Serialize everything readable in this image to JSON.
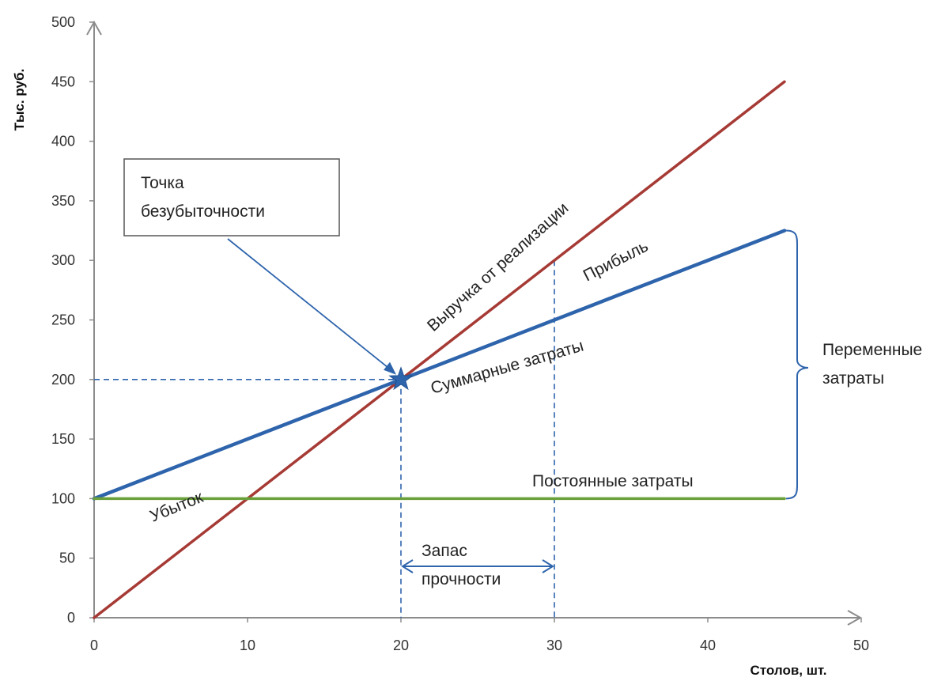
{
  "chart_data": {
    "type": "line",
    "xlabel": "Столов, шт.",
    "ylabel": "Тыс. руб.",
    "xlim": [
      0,
      50
    ],
    "ylim": [
      0,
      500
    ],
    "x_ticks": [
      0,
      10,
      20,
      30,
      40,
      50
    ],
    "y_ticks": [
      0,
      50,
      100,
      150,
      200,
      250,
      300,
      350,
      400,
      450,
      500
    ],
    "grid": false,
    "series": [
      {
        "name": "Выручка от реализации",
        "x": [
          0,
          45
        ],
        "y": [
          0,
          450
        ],
        "color": "#a63a35"
      },
      {
        "name": "Суммарные затраты",
        "x": [
          0,
          45
        ],
        "y": [
          100,
          325
        ],
        "color": "#2e64ac"
      },
      {
        "name": "Постоянные затраты",
        "x": [
          0,
          45
        ],
        "y": [
          100,
          100
        ],
        "color": "#6aa03a"
      }
    ],
    "break_even": {
      "x": 20,
      "y": 200,
      "label_line1": "Точка",
      "label_line2": "безубыточности"
    },
    "safety_margin": {
      "x_from": 20,
      "x_to": 30,
      "label_line1": "Запас",
      "label_line2": "прочности"
    },
    "variable_costs_label": {
      "line1": "Переменные",
      "line2": "затраты"
    },
    "profit_label": "Прибыль",
    "loss_label": "Убыток",
    "revenue_label": "Выручка от реализации",
    "total_costs_label": "Суммарные затраты",
    "fixed_costs_label": "Постоянные затраты"
  }
}
